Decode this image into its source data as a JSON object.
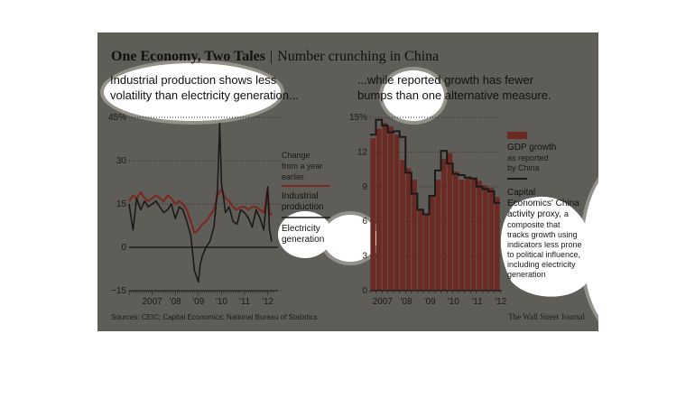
{
  "header": {
    "title_bold": "One Economy, Two Tales",
    "separator": "|",
    "title_rest": "Number crunching in China"
  },
  "footer": {
    "sources": "Sources: CEIC; Capital Economics; National Bureau of Statistics",
    "credit": "The Wall Street Journal"
  },
  "colors": {
    "panel_bg": "#5f5d58",
    "industrial": "#7a2a22",
    "electricity": "#1a1a1a",
    "gdp_bar": "#6b2a24",
    "zero_line": "#111111",
    "grid": "#2f2f2f",
    "highlight": "#ffffff"
  },
  "chart_data": [
    {
      "type": "line",
      "subtitle_line1": "Industrial production shows less",
      "subtitle_line2": "volatility than electricity generation...",
      "ylim": [
        -15,
        45
      ],
      "y_ticks": [
        "45%",
        "30",
        "15",
        "0",
        "−15"
      ],
      "x_tick_labels": [
        "2007",
        "'08",
        "'09",
        "'10",
        "'11",
        "'12"
      ],
      "annotation_lines": [
        "Change",
        "from a year",
        "earlier"
      ],
      "series": [
        {
          "name": "Industrial production",
          "x": [
            2006.0,
            2006.17,
            2006.33,
            2006.5,
            2006.67,
            2006.83,
            2007.0,
            2007.17,
            2007.33,
            2007.5,
            2007.67,
            2007.83,
            2008.0,
            2008.17,
            2008.33,
            2008.5,
            2008.67,
            2008.83,
            2009.0,
            2009.17,
            2009.33,
            2009.5,
            2009.67,
            2009.83,
            2010.0,
            2010.17,
            2010.33,
            2010.5,
            2010.67,
            2010.83,
            2011.0,
            2011.17,
            2011.33,
            2011.5,
            2011.67,
            2011.83,
            2012.0,
            2012.08,
            2012.17
          ],
          "y": [
            16,
            18,
            17,
            19,
            17,
            16,
            17,
            18,
            17,
            16,
            18,
            17,
            15,
            16,
            15,
            13,
            9,
            5,
            6,
            8,
            9,
            11,
            13,
            18,
            20,
            17,
            16,
            14,
            13,
            14,
            14,
            13,
            14,
            14,
            13,
            12,
            20,
            12,
            11
          ]
        },
        {
          "name": "Electricity generation",
          "x": [
            2006.0,
            2006.17,
            2006.33,
            2006.5,
            2006.67,
            2006.83,
            2007.0,
            2007.17,
            2007.33,
            2007.5,
            2007.67,
            2007.83,
            2008.0,
            2008.17,
            2008.33,
            2008.5,
            2008.67,
            2008.83,
            2009.0,
            2009.08,
            2009.17,
            2009.33,
            2009.5,
            2009.67,
            2009.83,
            2009.92,
            2010.0,
            2010.08,
            2010.17,
            2010.33,
            2010.5,
            2010.67,
            2010.83,
            2011.0,
            2011.17,
            2011.33,
            2011.5,
            2011.67,
            2011.83,
            2012.0,
            2012.08,
            2012.17
          ],
          "y": [
            15,
            6,
            17,
            13,
            16,
            14,
            15,
            16,
            14,
            12,
            13,
            15,
            10,
            14,
            13,
            9,
            4,
            -8,
            -12,
            -6,
            -3,
            0,
            2,
            7,
            20,
            43,
            22,
            18,
            12,
            14,
            9,
            8,
            13,
            12,
            10,
            7,
            13,
            10,
            6,
            21,
            6,
            2
          ]
        }
      ]
    },
    {
      "type": "bar",
      "subtitle_line1": "...while reported growth has fewer",
      "subtitle_line2": "bumps than one alternative measure.",
      "ylim": [
        0,
        15
      ],
      "y_ticks": [
        "15%",
        "12",
        "9",
        "6",
        "3",
        "0"
      ],
      "x_tick_labels": [
        "2007",
        "'08",
        "'09",
        "'10",
        "'11",
        "'12"
      ],
      "series": [
        {
          "name": "GDP growth",
          "x": [
            2006.75,
            2007.0,
            2007.25,
            2007.5,
            2007.75,
            2008.0,
            2008.25,
            2008.5,
            2008.75,
            2009.0,
            2009.25,
            2009.5,
            2009.75,
            2010.0,
            2010.25,
            2010.5,
            2010.75,
            2011.0,
            2011.25,
            2011.5,
            2011.75,
            2012.0
          ],
          "y": [
            13.2,
            14.0,
            14.5,
            14.2,
            13.5,
            11.3,
            10.6,
            9.6,
            7.1,
            6.6,
            8.2,
            9.6,
            11.4,
            11.9,
            10.3,
            9.6,
            9.8,
            9.7,
            9.5,
            9.1,
            8.9,
            8.1
          ]
        },
        {
          "name": "Capital Economics' China activity proxy",
          "x": [
            2006.75,
            2007.0,
            2007.25,
            2007.5,
            2007.75,
            2008.0,
            2008.25,
            2008.5,
            2008.75,
            2009.0,
            2009.25,
            2009.5,
            2009.75,
            2010.0,
            2010.25,
            2010.5,
            2010.75,
            2011.0,
            2011.25,
            2011.5,
            2011.75,
            2012.0
          ],
          "y": [
            13.5,
            14.8,
            14.3,
            13.7,
            13.8,
            13.3,
            10.2,
            8.4,
            7.0,
            6.6,
            8.2,
            10.4,
            12.1,
            11.0,
            10.1,
            10.0,
            9.8,
            9.7,
            9.0,
            8.8,
            8.6,
            7.6
          ]
        }
      ],
      "legend": {
        "gdp_title": "GDP growth",
        "gdp_desc": [
          "as reported",
          "by China"
        ],
        "proxy_title": [
          "Capital",
          "Economics' China",
          "activity proxy,"
        ],
        "proxy_title_suffix": "a",
        "proxy_desc": [
          "composite that",
          "tracks growth using",
          "indicators less prone",
          "to political influence,",
          "including electricity",
          "generation"
        ]
      }
    }
  ]
}
